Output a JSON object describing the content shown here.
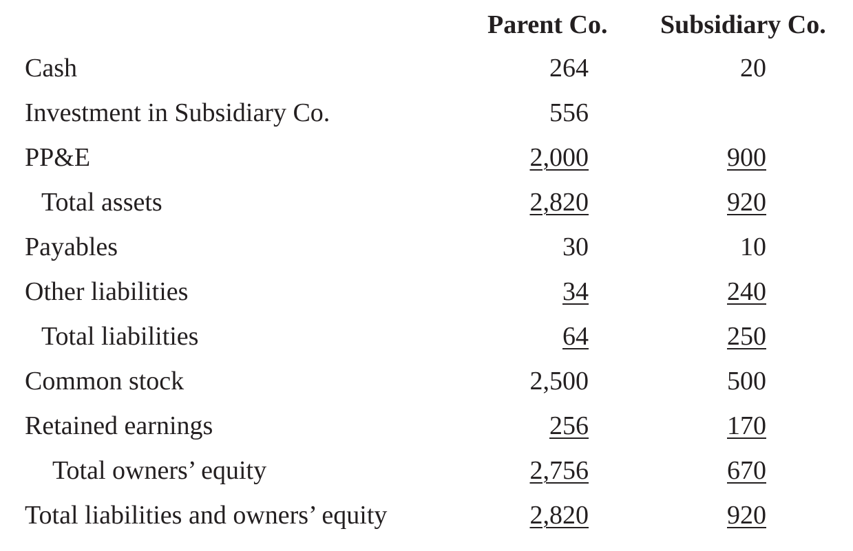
{
  "headers": {
    "parent": "Parent Co.",
    "subsidiary": "Subsidiary Co."
  },
  "rows": [
    {
      "label": "Cash",
      "parent": "264",
      "subsidiary": "20"
    },
    {
      "label": "Investment in Subsidiary Co.",
      "parent": "556",
      "subsidiary": ""
    },
    {
      "label": "PP&E",
      "parent": "2,000",
      "subsidiary": "900"
    },
    {
      "label": "Total assets",
      "parent": "2,820",
      "subsidiary": "920"
    },
    {
      "label": "Payables",
      "parent": "30",
      "subsidiary": "10"
    },
    {
      "label": "Other liabilities",
      "parent": "34",
      "subsidiary": "240"
    },
    {
      "label": "Total liabilities",
      "parent": "64",
      "subsidiary": "250"
    },
    {
      "label": "Common stock",
      "parent": "2,500",
      "subsidiary": "500"
    },
    {
      "label": "Retained earnings",
      "parent": "256",
      "subsidiary": "170"
    },
    {
      "label": "Total owners’ equity",
      "parent": "2,756",
      "subsidiary": "670"
    },
    {
      "label": "Total liabilities and owners’ equity",
      "parent": "2,820",
      "subsidiary": "920"
    }
  ]
}
